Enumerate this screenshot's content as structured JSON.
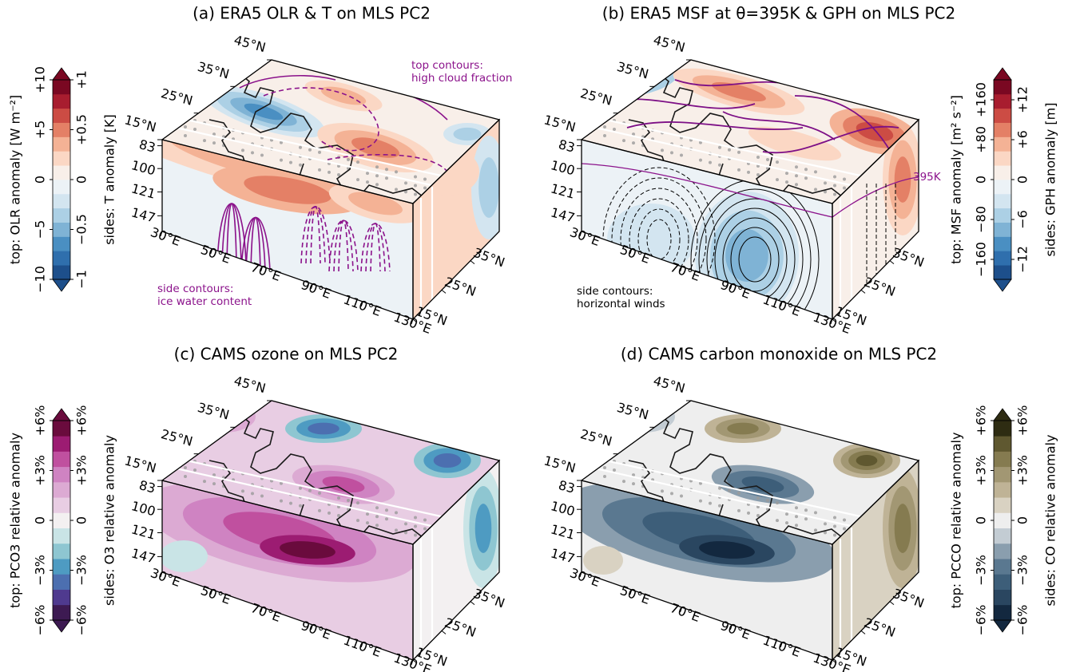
{
  "chart_data": [
    {
      "type": "cube",
      "title": "(a) ERA5 OLR & T on MLS PC2",
      "lat_ticks": [
        {
          "value": 15,
          "label": "15°N"
        },
        {
          "value": 25,
          "label": "25°N"
        },
        {
          "value": 35,
          "label": "35°N"
        },
        {
          "value": 45,
          "label": "45°N"
        }
      ],
      "side_lat_ticks": [
        {
          "value": 35,
          "label": "35°N"
        },
        {
          "value": 25,
          "label": "25°N"
        },
        {
          "value": 15,
          "label": "15°N"
        }
      ],
      "lon_ticks": [
        {
          "value": 30,
          "label": "30°E"
        },
        {
          "value": 50,
          "label": "50°E"
        },
        {
          "value": 70,
          "label": "70°E"
        },
        {
          "value": 90,
          "label": "90°E"
        },
        {
          "value": 110,
          "label": "110°E"
        },
        {
          "value": 130,
          "label": "130°E"
        }
      ],
      "pressure_ticks": [
        83,
        100,
        121,
        147
      ],
      "latlim": [
        15,
        45
      ],
      "lonlim": [
        30,
        130
      ],
      "plim": [
        79,
        167
      ],
      "log_scale": true,
      "annotations": [
        {
          "lines": [
            "top contours:",
            "high cloud fraction"
          ],
          "color": "#8b128b"
        },
        {
          "lines": [
            "side contours:",
            "ice water content"
          ],
          "color": "#8b128b"
        }
      ],
      "colorbar": {
        "top_label": "top: OLR anomaly [W m⁻²]",
        "side_label": "sides: T anomaly [K]",
        "top_lim": [
          -10,
          10
        ],
        "top_ticks": [
          {
            "value": -10,
            "label": "−10"
          },
          {
            "value": -5,
            "label": "−5"
          },
          0,
          {
            "value": 5,
            "label": "+5"
          },
          {
            "value": 10,
            "label": "+10"
          }
        ],
        "side_lim": [
          -1,
          1
        ],
        "side_ticks": [
          {
            "value": -1,
            "label": "−1"
          },
          {
            "value": -0.5,
            "label": "−0.5"
          },
          0,
          {
            "value": 0.5,
            "label": "+0.5"
          },
          {
            "value": 1,
            "label": "+1"
          }
        ],
        "colors": [
          "#1d4f8b",
          "#2f6fad",
          "#4a8fc2",
          "#7fb3d5",
          "#acd0e5",
          "#d3e5f0",
          "#ecf2f6",
          "#f8efe9",
          "#fbd7c4",
          "#f4b295",
          "#e48066",
          "#cc4c44",
          "#a81d2f",
          "#7a0822"
        ]
      }
    },
    {
      "type": "cube",
      "title": "(b) ERA5 MSF at θ=395K & GPH on MLS PC2",
      "lat_ticks": [
        {
          "value": 15,
          "label": "15°N"
        },
        {
          "value": 25,
          "label": "25°N"
        },
        {
          "value": 35,
          "label": "35°N"
        },
        {
          "value": 45,
          "label": "45°N"
        }
      ],
      "side_lat_ticks": [
        {
          "value": 35,
          "label": "35°N"
        },
        {
          "value": 25,
          "label": "25°N"
        },
        {
          "value": 15,
          "label": "15°N"
        }
      ],
      "lon_ticks": [
        {
          "value": 30,
          "label": "30°E"
        },
        {
          "value": 50,
          "label": "50°E"
        },
        {
          "value": 70,
          "label": "70°E"
        },
        {
          "value": 90,
          "label": "90°E"
        },
        {
          "value": 110,
          "label": "110°E"
        },
        {
          "value": 130,
          "label": "130°E"
        }
      ],
      "pressure_ticks": [
        83,
        100,
        121,
        147
      ],
      "latlim": [
        15,
        45
      ],
      "lonlim": [
        30,
        130
      ],
      "plim": [
        79,
        167
      ],
      "log_scale": true,
      "annotations": [
        {
          "lines": [
            "side contours:",
            "horizontal winds"
          ],
          "color": "#000000"
        },
        {
          "lines": [
            "395K"
          ],
          "color": "#8b128b"
        }
      ],
      "colorbar": {
        "top_label": "top: MSF anomaly [m² s⁻²]",
        "side_label": "sides: GPH anomaly [m]",
        "top_lim": [
          -200,
          200
        ],
        "top_ticks": [
          {
            "value": -160,
            "label": "−160"
          },
          {
            "value": -80,
            "label": "−80"
          },
          0,
          {
            "value": 80,
            "label": "+80"
          },
          {
            "value": 160,
            "label": "+160"
          }
        ],
        "side_lim": [
          -15,
          15
        ],
        "side_ticks": [
          {
            "value": -12,
            "label": "−12"
          },
          {
            "value": -6,
            "label": "−6"
          },
          0,
          {
            "value": 6,
            "label": "+6"
          },
          {
            "value": 12,
            "label": "+12"
          }
        ],
        "colors": [
          "#1d4f8b",
          "#2f6fad",
          "#4a8fc2",
          "#7fb3d5",
          "#acd0e5",
          "#d3e5f0",
          "#ecf2f6",
          "#f8efe9",
          "#fbd7c4",
          "#f4b295",
          "#e48066",
          "#cc4c44",
          "#a81d2f",
          "#7a0822"
        ]
      }
    },
    {
      "type": "cube",
      "title": "(c) CAMS ozone on MLS PC2",
      "lat_ticks": [
        {
          "value": 15,
          "label": "15°N"
        },
        {
          "value": 25,
          "label": "25°N"
        },
        {
          "value": 35,
          "label": "35°N"
        },
        {
          "value": 45,
          "label": "45°N"
        }
      ],
      "side_lat_ticks": [
        {
          "value": 35,
          "label": "35°N"
        },
        {
          "value": 25,
          "label": "25°N"
        },
        {
          "value": 15,
          "label": "15°N"
        }
      ],
      "lon_ticks": [
        {
          "value": 30,
          "label": "30°E"
        },
        {
          "value": 50,
          "label": "50°E"
        },
        {
          "value": 70,
          "label": "70°E"
        },
        {
          "value": 90,
          "label": "90°E"
        },
        {
          "value": 110,
          "label": "110°E"
        },
        {
          "value": 130,
          "label": "130°E"
        }
      ],
      "pressure_ticks": [
        83,
        100,
        121,
        147
      ],
      "latlim": [
        15,
        45
      ],
      "lonlim": [
        30,
        130
      ],
      "plim": [
        79,
        167
      ],
      "log_scale": true,
      "annotations": [],
      "colorbar": {
        "top_label": "top: PCO3 relative anomaly",
        "side_label": "sides: O3 relative anomaly",
        "top_lim": [
          -6,
          6
        ],
        "top_ticks": [
          {
            "value": -6,
            "label": "−6%"
          },
          {
            "value": -3,
            "label": "−3%"
          },
          0,
          {
            "value": 3,
            "label": "+3%"
          },
          {
            "value": 6,
            "label": "+6%"
          }
        ],
        "side_lim": [
          -6,
          6
        ],
        "side_ticks": [
          {
            "value": -6,
            "label": "−6%"
          },
          {
            "value": -3,
            "label": "−3%"
          },
          0,
          {
            "value": 3,
            "label": "+3%"
          },
          {
            "value": 6,
            "label": "+6%"
          }
        ],
        "colors": [
          "#3d1a52",
          "#4f3a8f",
          "#4c6fb0",
          "#4e9bc2",
          "#8ec6d1",
          "#c9e4e6",
          "#f3f0f1",
          "#e8cde3",
          "#dcaad3",
          "#cf83c2",
          "#c0509f",
          "#9c1c72",
          "#6a0b3d"
        ]
      }
    },
    {
      "type": "cube",
      "title": "(d) CAMS carbon monoxide on MLS PC2",
      "lat_ticks": [
        {
          "value": 15,
          "label": "15°N"
        },
        {
          "value": 25,
          "label": "25°N"
        },
        {
          "value": 35,
          "label": "35°N"
        },
        {
          "value": 45,
          "label": "45°N"
        }
      ],
      "side_lat_ticks": [
        {
          "value": 35,
          "label": "35°N"
        },
        {
          "value": 25,
          "label": "25°N"
        },
        {
          "value": 15,
          "label": "15°N"
        }
      ],
      "lon_ticks": [
        {
          "value": 30,
          "label": "30°E"
        },
        {
          "value": 50,
          "label": "50°E"
        },
        {
          "value": 70,
          "label": "70°E"
        },
        {
          "value": 90,
          "label": "90°E"
        },
        {
          "value": 110,
          "label": "110°E"
        },
        {
          "value": 130,
          "label": "130°E"
        }
      ],
      "pressure_ticks": [
        83,
        100,
        121,
        147
      ],
      "latlim": [
        15,
        45
      ],
      "lonlim": [
        30,
        130
      ],
      "plim": [
        79,
        167
      ],
      "log_scale": true,
      "annotations": [],
      "colorbar": {
        "top_label": "top: PCCO relative anomaly",
        "side_label": "sides: CO relative anomaly",
        "top_lim": [
          -6,
          6
        ],
        "top_ticks": [
          {
            "value": -6,
            "label": "−6%"
          },
          {
            "value": -3,
            "label": "−3%"
          },
          0,
          {
            "value": 3,
            "label": "+3%"
          },
          {
            "value": 6,
            "label": "+6%"
          }
        ],
        "side_lim": [
          -6,
          6
        ],
        "side_ticks": [
          {
            "value": -6,
            "label": "−6%"
          },
          {
            "value": -3,
            "label": "−3%"
          },
          0,
          {
            "value": 3,
            "label": "+3%"
          },
          {
            "value": 6,
            "label": "+6%"
          }
        ],
        "colors": [
          "#13283f",
          "#2a4660",
          "#3d5e79",
          "#5a7890",
          "#8a9eae",
          "#c3ccd3",
          "#eeeeee",
          "#d9d2c2",
          "#bfb396",
          "#a29773",
          "#857b50",
          "#5f5830",
          "#2e2c12"
        ]
      }
    }
  ]
}
